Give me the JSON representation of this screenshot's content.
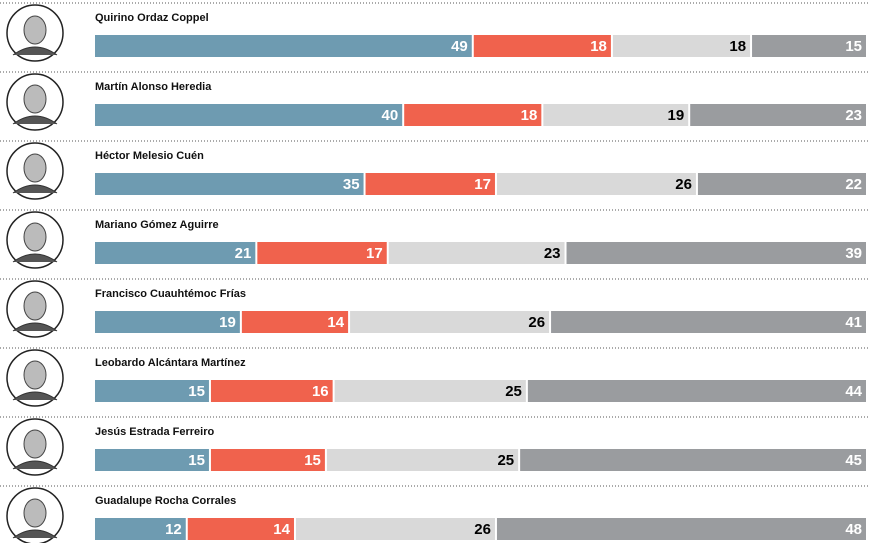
{
  "chart_data": {
    "type": "bar",
    "orientation": "horizontal",
    "stacked": true,
    "categories": [
      "Quirino Ordaz Coppel",
      "Martín Alonso Heredia",
      "Héctor Melesio Cuén",
      "Mariano Gómez Aguirre",
      "Francisco Cuauhtémoc Frías",
      "Leobardo Alcántara Martínez",
      "Jesús Estrada Ferreiro",
      "Guadalupe Rocha Corrales"
    ],
    "series": [
      {
        "color": "#6e9bb1",
        "label_color": "#ffffff",
        "values": [
          49,
          40,
          35,
          21,
          19,
          15,
          15,
          12
        ]
      },
      {
        "color": "#f0624d",
        "label_color": "#ffffff",
        "values": [
          18,
          18,
          17,
          17,
          14,
          16,
          15,
          14
        ]
      },
      {
        "color": "#d9d9d9",
        "label_color": "#000000",
        "values": [
          18,
          19,
          26,
          23,
          26,
          25,
          25,
          26
        ]
      },
      {
        "color": "#9a9c9f",
        "label_color": "#ffffff",
        "values": [
          15,
          23,
          22,
          39,
          41,
          44,
          45,
          48
        ]
      }
    ]
  }
}
